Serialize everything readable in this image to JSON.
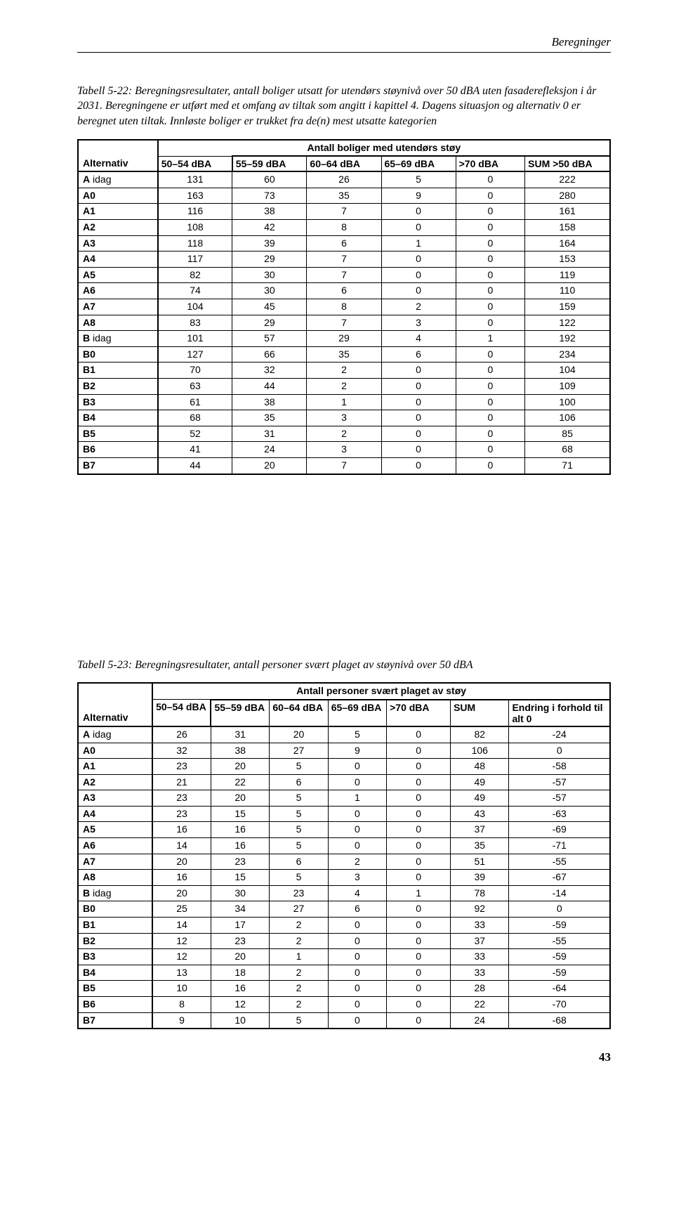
{
  "header": "Beregninger",
  "page_number": "43",
  "table1": {
    "caption": "Tabell 5-22: Beregningsresultater, antall boliger utsatt for utendørs støynivå over 50 dBA uten fasaderefleksjon i år 2031. Beregningene er utført med et omfang av tiltak som angitt i kapittel 4. Dagens situasjon og alternativ 0 er beregnet uten tiltak. Innløste boliger er trukket fra de(n) mest utsatte kategorien",
    "super_header": "Antall boliger med utendørs støy",
    "row_header": "Alternativ",
    "columns": [
      "50–54 dBA",
      "55–59 dBA",
      "60–64 dBA",
      "65–69 dBA",
      ">70 dBA",
      "SUM >50 dBA"
    ],
    "rows": [
      {
        "k": "A",
        "suf": " idag",
        "v": [
          131,
          60,
          26,
          5,
          0,
          222
        ]
      },
      {
        "k": "A0",
        "suf": "",
        "v": [
          163,
          73,
          35,
          9,
          0,
          280
        ]
      },
      {
        "k": "A1",
        "suf": "",
        "v": [
          116,
          38,
          7,
          0,
          0,
          161
        ]
      },
      {
        "k": "A2",
        "suf": "",
        "v": [
          108,
          42,
          8,
          0,
          0,
          158
        ]
      },
      {
        "k": "A3",
        "suf": "",
        "v": [
          118,
          39,
          6,
          1,
          0,
          164
        ]
      },
      {
        "k": "A4",
        "suf": "",
        "v": [
          117,
          29,
          7,
          0,
          0,
          153
        ]
      },
      {
        "k": "A5",
        "suf": "",
        "v": [
          82,
          30,
          7,
          0,
          0,
          119
        ]
      },
      {
        "k": "A6",
        "suf": "",
        "v": [
          74,
          30,
          6,
          0,
          0,
          110
        ]
      },
      {
        "k": "A7",
        "suf": "",
        "v": [
          104,
          45,
          8,
          2,
          0,
          159
        ]
      },
      {
        "k": "A8",
        "suf": "",
        "v": [
          83,
          29,
          7,
          3,
          0,
          122
        ]
      },
      {
        "k": "B",
        "suf": " idag",
        "v": [
          101,
          57,
          29,
          4,
          1,
          192
        ]
      },
      {
        "k": "B0",
        "suf": "",
        "v": [
          127,
          66,
          35,
          6,
          0,
          234
        ]
      },
      {
        "k": "B1",
        "suf": "",
        "v": [
          70,
          32,
          2,
          0,
          0,
          104
        ]
      },
      {
        "k": "B2",
        "suf": "",
        "v": [
          63,
          44,
          2,
          0,
          0,
          109
        ]
      },
      {
        "k": "B3",
        "suf": "",
        "v": [
          61,
          38,
          1,
          0,
          0,
          100
        ]
      },
      {
        "k": "B4",
        "suf": "",
        "v": [
          68,
          35,
          3,
          0,
          0,
          106
        ]
      },
      {
        "k": "B5",
        "suf": "",
        "v": [
          52,
          31,
          2,
          0,
          0,
          85
        ]
      },
      {
        "k": "B6",
        "suf": "",
        "v": [
          41,
          24,
          3,
          0,
          0,
          68
        ]
      },
      {
        "k": "B7",
        "suf": "",
        "v": [
          44,
          20,
          7,
          0,
          0,
          71
        ]
      }
    ]
  },
  "table2": {
    "caption": "Tabell 5-23: Beregningsresultater, antall personer svært plaget av støynivå over 50 dBA",
    "super_header": "Antall personer svært plaget av støy",
    "row_header": "Alternativ",
    "columns": [
      "50–54 dBA",
      "55–59 dBA",
      "60–64 dBA",
      "65–69 dBA",
      ">70 dBA",
      "SUM",
      "Endring i forhold til alt 0"
    ],
    "rows": [
      {
        "k": "A",
        "suf": " idag",
        "v": [
          26,
          31,
          20,
          5,
          0,
          82,
          -24
        ]
      },
      {
        "k": "A0",
        "suf": "",
        "v": [
          32,
          38,
          27,
          9,
          0,
          106,
          0
        ]
      },
      {
        "k": "A1",
        "suf": "",
        "v": [
          23,
          20,
          5,
          0,
          0,
          48,
          -58
        ]
      },
      {
        "k": "A2",
        "suf": "",
        "v": [
          21,
          22,
          6,
          0,
          0,
          49,
          -57
        ]
      },
      {
        "k": "A3",
        "suf": "",
        "v": [
          23,
          20,
          5,
          1,
          0,
          49,
          -57
        ]
      },
      {
        "k": "A4",
        "suf": "",
        "v": [
          23,
          15,
          5,
          0,
          0,
          43,
          -63
        ]
      },
      {
        "k": "A5",
        "suf": "",
        "v": [
          16,
          16,
          5,
          0,
          0,
          37,
          -69
        ]
      },
      {
        "k": "A6",
        "suf": "",
        "v": [
          14,
          16,
          5,
          0,
          0,
          35,
          -71
        ]
      },
      {
        "k": "A7",
        "suf": "",
        "v": [
          20,
          23,
          6,
          2,
          0,
          51,
          -55
        ]
      },
      {
        "k": "A8",
        "suf": "",
        "v": [
          16,
          15,
          5,
          3,
          0,
          39,
          -67
        ]
      },
      {
        "k": "B",
        "suf": " idag",
        "v": [
          20,
          30,
          23,
          4,
          1,
          78,
          -14
        ]
      },
      {
        "k": "B0",
        "suf": "",
        "v": [
          25,
          34,
          27,
          6,
          0,
          92,
          0
        ]
      },
      {
        "k": "B1",
        "suf": "",
        "v": [
          14,
          17,
          2,
          0,
          0,
          33,
          -59
        ]
      },
      {
        "k": "B2",
        "suf": "",
        "v": [
          12,
          23,
          2,
          0,
          0,
          37,
          -55
        ]
      },
      {
        "k": "B3",
        "suf": "",
        "v": [
          12,
          20,
          1,
          0,
          0,
          33,
          -59
        ]
      },
      {
        "k": "B4",
        "suf": "",
        "v": [
          13,
          18,
          2,
          0,
          0,
          33,
          -59
        ]
      },
      {
        "k": "B5",
        "suf": "",
        "v": [
          10,
          16,
          2,
          0,
          0,
          28,
          -64
        ]
      },
      {
        "k": "B6",
        "suf": "",
        "v": [
          8,
          12,
          2,
          0,
          0,
          22,
          -70
        ]
      },
      {
        "k": "B7",
        "suf": "",
        "v": [
          9,
          10,
          5,
          0,
          0,
          24,
          -68
        ]
      }
    ]
  }
}
